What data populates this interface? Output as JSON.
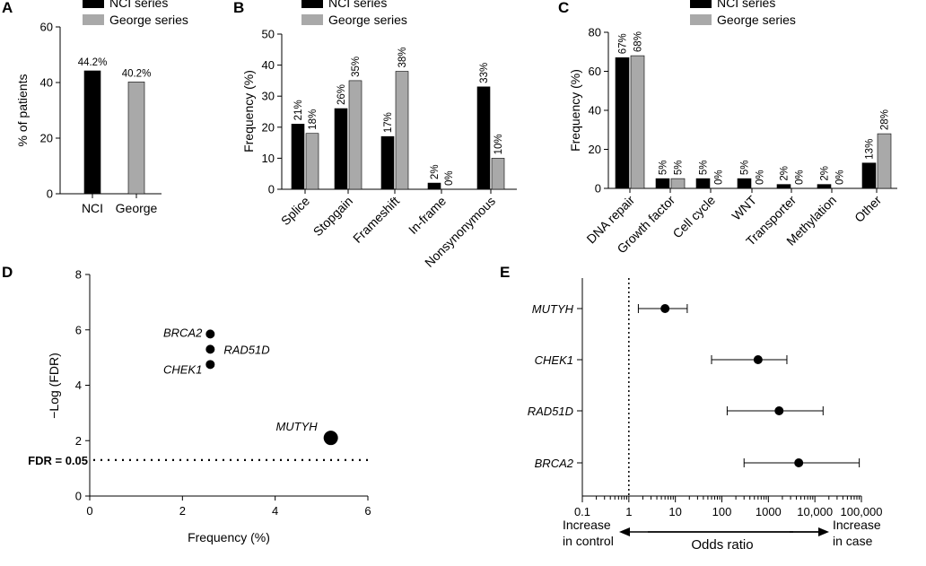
{
  "legend": {
    "nci": "NCI series",
    "george": "George series"
  },
  "colors": {
    "nci": "#000000",
    "george": "#a9a9a9"
  },
  "chart_data": [
    {
      "panel": "A",
      "type": "bar",
      "categories": [
        "NCI",
        "George"
      ],
      "values": [
        44.2,
        40.2
      ],
      "value_labels": [
        "44.2%",
        "40.2%"
      ],
      "ylabel": "% of patients",
      "ylim": [
        0,
        60
      ],
      "yticks": [
        0,
        20,
        40,
        60
      ]
    },
    {
      "panel": "B",
      "type": "bar",
      "categories": [
        "Splice",
        "Stopgain",
        "Frameshift",
        "In-frame",
        "Nonsynonymous"
      ],
      "series": [
        {
          "name": "NCI series",
          "values": [
            21,
            26,
            17,
            2,
            33
          ],
          "labels": [
            "21%",
            "26%",
            "17%",
            "2%",
            "33%"
          ]
        },
        {
          "name": "George series",
          "values": [
            18,
            35,
            38,
            0,
            10
          ],
          "labels": [
            "18%",
            "35%",
            "38%",
            "0%",
            "10%"
          ]
        }
      ],
      "ylabel": "Frequency (%)",
      "ylim": [
        0,
        50
      ],
      "yticks": [
        0,
        10,
        20,
        30,
        40,
        50
      ]
    },
    {
      "panel": "C",
      "type": "bar",
      "categories": [
        "DNA repair",
        "Growth factor",
        "Cell cycle",
        "WNT",
        "Transporter",
        "Methylation",
        "Other"
      ],
      "series": [
        {
          "name": "NCI series",
          "values": [
            67,
            5,
            5,
            5,
            2,
            2,
            13
          ],
          "labels": [
            "67%",
            "5%",
            "5%",
            "5%",
            "2%",
            "2%",
            "13%"
          ]
        },
        {
          "name": "George series",
          "values": [
            68,
            5,
            0,
            0,
            0,
            0,
            28
          ],
          "labels": [
            "68%",
            "5%",
            "0%",
            "0%",
            "0%",
            "0%",
            "28%"
          ]
        }
      ],
      "ylabel": "Frequency (%)",
      "ylim": [
        0,
        80
      ],
      "yticks": [
        0,
        20,
        40,
        60,
        80
      ]
    },
    {
      "panel": "D",
      "type": "scatter",
      "points": [
        {
          "label": "BRCA2",
          "x": 2.6,
          "y": 5.85,
          "size": "small"
        },
        {
          "label": "RAD51D",
          "x": 2.6,
          "y": 5.3,
          "size": "small"
        },
        {
          "label": "CHEK1",
          "x": 2.6,
          "y": 4.75,
          "size": "small"
        },
        {
          "label": "MUTYH",
          "x": 5.2,
          "y": 2.1,
          "size": "large"
        }
      ],
      "xlabel": "Frequency (%)",
      "ylabel": "−Log (FDR)",
      "xlim": [
        0,
        6
      ],
      "ylim": [
        0,
        8
      ],
      "xticks": [
        0,
        2,
        4,
        6
      ],
      "yticks": [
        0,
        2,
        4,
        6,
        8
      ],
      "threshold": {
        "y": 1.3,
        "label": "FDR = 0.05"
      }
    },
    {
      "panel": "E",
      "type": "forest",
      "rows": [
        {
          "gene": "MUTYH",
          "or": 6,
          "lo": 1.6,
          "hi": 18
        },
        {
          "gene": "CHEK1",
          "or": 600,
          "lo": 60,
          "hi": 2500
        },
        {
          "gene": "RAD51D",
          "or": 1700,
          "lo": 130,
          "hi": 15000
        },
        {
          "gene": "BRCA2",
          "or": 4500,
          "lo": 300,
          "hi": 90000
        }
      ],
      "xlabel": "Odds ratio",
      "xticks": [
        "0.1",
        "1",
        "10",
        "100",
        "1000",
        "10,000",
        "100,000"
      ],
      "reference": 1,
      "left_note": [
        "Increase",
        "in control"
      ],
      "right_note": [
        "Increase",
        "in case"
      ]
    }
  ]
}
